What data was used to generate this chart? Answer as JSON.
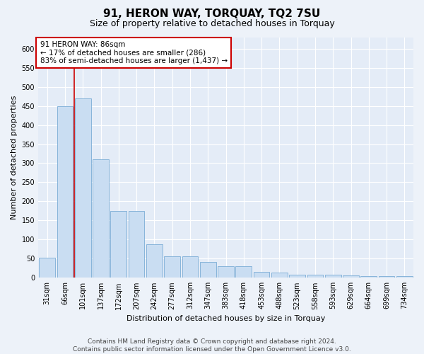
{
  "title": "91, HERON WAY, TORQUAY, TQ2 7SU",
  "subtitle": "Size of property relative to detached houses in Torquay",
  "xlabel": "Distribution of detached houses by size in Torquay",
  "ylabel": "Number of detached properties",
  "categories": [
    "31sqm",
    "66sqm",
    "101sqm",
    "137sqm",
    "172sqm",
    "207sqm",
    "242sqm",
    "277sqm",
    "312sqm",
    "347sqm",
    "383sqm",
    "418sqm",
    "453sqm",
    "488sqm",
    "523sqm",
    "558sqm",
    "593sqm",
    "629sqm",
    "664sqm",
    "699sqm",
    "734sqm"
  ],
  "values": [
    53,
    450,
    470,
    311,
    175,
    175,
    88,
    57,
    57,
    42,
    30,
    30,
    15,
    13,
    8,
    8,
    8,
    7,
    4,
    4,
    4
  ],
  "bar_color": "#c9ddf2",
  "bar_edge_color": "#7badd6",
  "vline_color": "#cc0000",
  "vline_x": 1.5,
  "annotation_text": "91 HERON WAY: 86sqm\n← 17% of detached houses are smaller (286)\n83% of semi-detached houses are larger (1,437) →",
  "annotation_box_facecolor": "#ffffff",
  "annotation_box_edgecolor": "#cc0000",
  "ylim": [
    0,
    630
  ],
  "yticks": [
    0,
    50,
    100,
    150,
    200,
    250,
    300,
    350,
    400,
    450,
    500,
    550,
    600
  ],
  "bg_color": "#edf2f9",
  "plot_bg_color": "#e4ecf7",
  "title_fontsize": 11,
  "subtitle_fontsize": 9,
  "label_fontsize": 8,
  "tick_fontsize": 7,
  "annotation_fontsize": 7.5,
  "footer_fontsize": 6.5,
  "footer_line1": "Contains HM Land Registry data © Crown copyright and database right 2024.",
  "footer_line2": "Contains public sector information licensed under the Open Government Licence v3.0."
}
